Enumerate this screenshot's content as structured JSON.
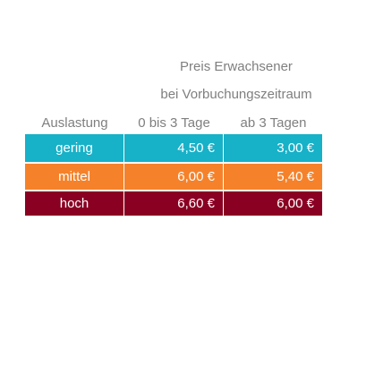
{
  "header": {
    "title": "Preis Erwachsener",
    "subtitle": "bei Vorbuchungszeitraum"
  },
  "table": {
    "columns": [
      "Auslastung",
      "0 bis 3 Tage",
      "ab 3 Tagen"
    ],
    "rows": [
      [
        "gering",
        "4,50 €",
        "3,00 €"
      ],
      [
        "mittel",
        "6,00 €",
        "5,40 €"
      ],
      [
        "hoch",
        "6,60 €",
        "6,00 €"
      ]
    ]
  }
}
